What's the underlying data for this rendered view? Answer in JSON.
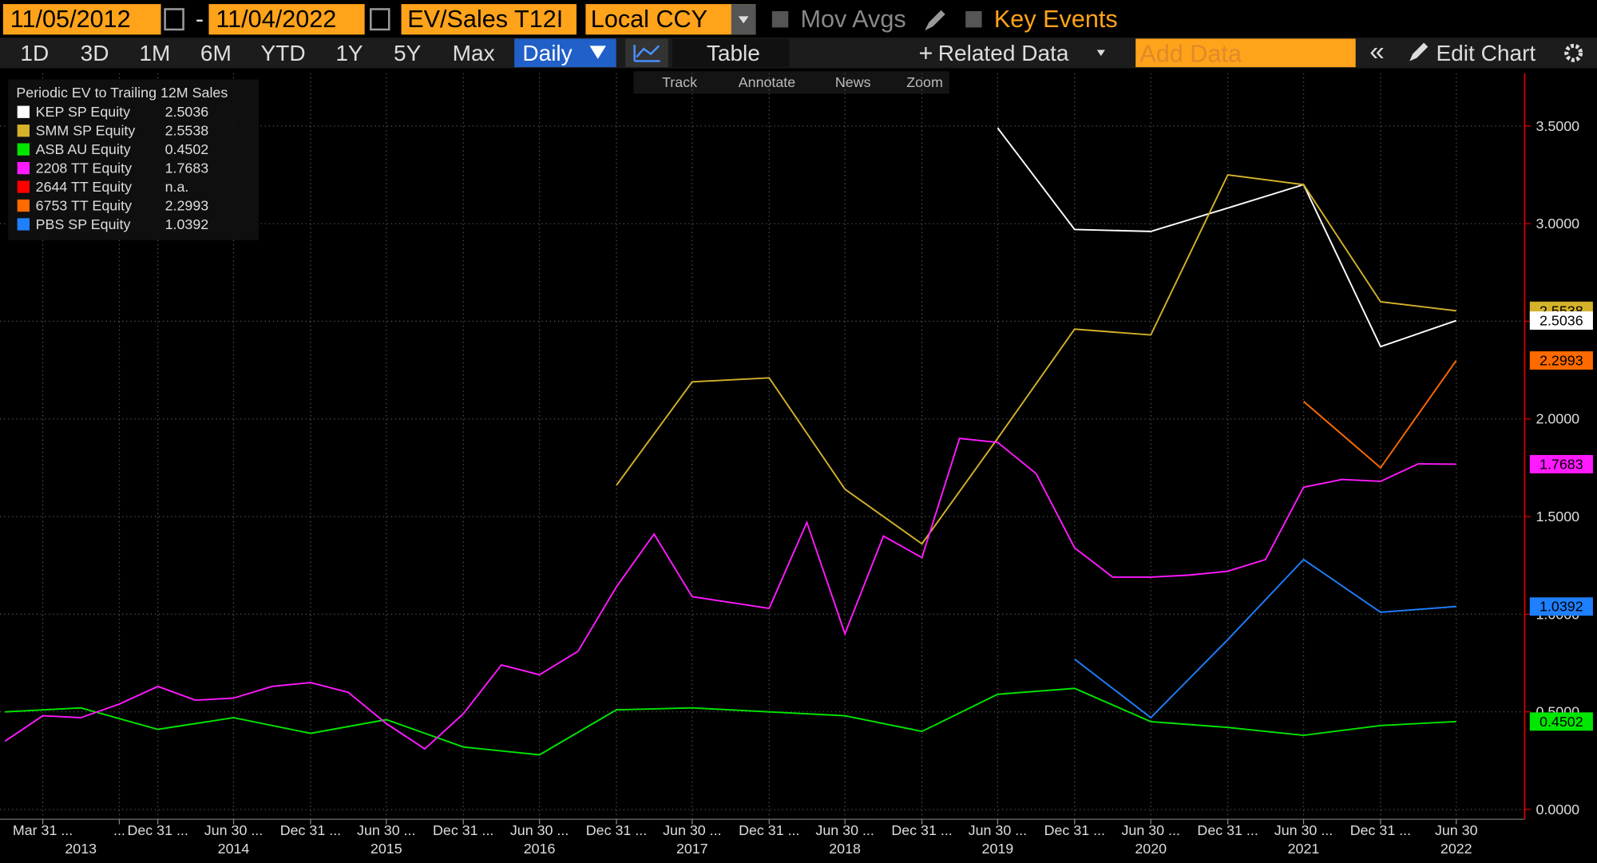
{
  "toolbar": {
    "start_date": "11/05/2012",
    "end_date": "11/04/2022",
    "field": "EV/Sales T12I",
    "currency": "Local CCY",
    "mov_avgs": "Mov Avgs",
    "key_events": "Key Events",
    "periods": [
      "1D",
      "3D",
      "1M",
      "6M",
      "YTD",
      "1Y",
      "5Y",
      "Max"
    ],
    "frequency": "Daily",
    "table": "Table",
    "related": "Related Data",
    "add_data": "Add Data",
    "edit_chart": "Edit Chart",
    "tools": [
      "Track",
      "Annotate",
      "News",
      "Zoom"
    ]
  },
  "chart_data": {
    "type": "line",
    "legend_title": "Periodic EV to Trailing 12M Sales",
    "legend": "top-left",
    "grid": true,
    "xlim": [
      "Dec 31 2012",
      "Nov 04 2022"
    ],
    "xticks": [
      {
        "value": "Mar 31 2013",
        "label": "Mar 31 ..."
      },
      {
        "value": "Sep 30 2013",
        "label": "..."
      },
      {
        "value": "Dec 31 2013",
        "label": "Dec 31 ..."
      },
      {
        "value": "Jun 30 2014",
        "label": "Jun 30 ..."
      },
      {
        "value": "Dec 31 2014",
        "label": "Dec 31 ..."
      },
      {
        "value": "Jun 30 2015",
        "label": "Jun 30 ..."
      },
      {
        "value": "Dec 31 2015",
        "label": "Dec 31 ..."
      },
      {
        "value": "Jun 30 2016",
        "label": "Jun 30 ..."
      },
      {
        "value": "Dec 31 2016",
        "label": "Dec 31 ..."
      },
      {
        "value": "Jun 30 2017",
        "label": "Jun 30 ..."
      },
      {
        "value": "Dec 31 2017",
        "label": "Dec 31 ..."
      },
      {
        "value": "Jun 30 2018",
        "label": "Jun 30 ..."
      },
      {
        "value": "Dec 31 2018",
        "label": "Dec 31 ..."
      },
      {
        "value": "Jun 30 2019",
        "label": "Jun 30 ..."
      },
      {
        "value": "Dec 31 2019",
        "label": "Dec 31 ..."
      },
      {
        "value": "Jun 30 2020",
        "label": "Jun 30 ..."
      },
      {
        "value": "Dec 31 2020",
        "label": "Dec 31 ..."
      },
      {
        "value": "Jun 30 2021",
        "label": "Jun 30 ..."
      },
      {
        "value": "Dec 31 2021",
        "label": "Dec 31 ..."
      },
      {
        "value": "Jun 30 2022",
        "label": "Jun 30"
      }
    ],
    "year_ticks": [
      {
        "value": "Jun 30 2013",
        "label": "2013"
      },
      {
        "value": "Jun 30 2014",
        "label": "2014"
      },
      {
        "value": "Jun 30 2015",
        "label": "2015"
      },
      {
        "value": "Jun 30 2016",
        "label": "2016"
      },
      {
        "value": "Jun 30 2017",
        "label": "2017"
      },
      {
        "value": "Jun 30 2018",
        "label": "2018"
      },
      {
        "value": "Jun 30 2019",
        "label": "2019"
      },
      {
        "value": "Jun 30 2020",
        "label": "2020"
      },
      {
        "value": "Jun 30 2021",
        "label": "2021"
      },
      {
        "value": "Jun 30 2022",
        "label": "2022"
      }
    ],
    "ylim": [
      -0.05,
      3.77
    ],
    "yticks": [
      {
        "value": 0,
        "label": "0.0000"
      },
      {
        "value": 0.5,
        "label": "0.5000"
      },
      {
        "value": 1,
        "label": "1.0000"
      },
      {
        "value": 1.5,
        "label": "1.5000"
      },
      {
        "value": 2,
        "label": "2.0000"
      },
      {
        "value": 2.5,
        "label": "2.5000"
      },
      {
        "value": 3,
        "label": "3.0000"
      },
      {
        "value": 3.5,
        "label": "3.5000"
      }
    ],
    "series": [
      {
        "name": "KEP SP Equity",
        "color": "#ffffff",
        "x": [
          "Jun 30 2019",
          "Dec 31 2019",
          "Jun 30 2020",
          "Dec 31 2020",
          "Jun 30 2021",
          "Dec 31 2021",
          "Jun 30 2022"
        ],
        "values": [
          3.49,
          2.97,
          2.96,
          3.08,
          3.2,
          2.37,
          2.5036
        ]
      },
      {
        "name": "SMM SP Equity",
        "color": "#d4b22a",
        "x": [
          "Dec 31 2016",
          "Jun 30 2017",
          "Dec 31 2017",
          "Jun 30 2018",
          "Dec 31 2018",
          "Jun 30 2019",
          "Dec 31 2019",
          "Jun 30 2020",
          "Dec 31 2020",
          "Jun 30 2021",
          "Dec 31 2021",
          "Jun 30 2022"
        ],
        "values": [
          1.66,
          2.19,
          2.21,
          1.64,
          1.36,
          1.9,
          2.46,
          2.43,
          3.25,
          3.2,
          2.6,
          2.5538
        ]
      },
      {
        "name": "ASB AU Equity",
        "color": "#00e600",
        "x": [
          "Dec 31 2012",
          "Jun 30 2013",
          "Dec 31 2013",
          "Jun 30 2014",
          "Dec 31 2014",
          "Jun 30 2015",
          "Dec 31 2015",
          "Jun 30 2016",
          "Dec 31 2016",
          "Jun 30 2017",
          "Dec 31 2017",
          "Jun 30 2018",
          "Dec 31 2018",
          "Jun 30 2019",
          "Dec 31 2019",
          "Jun 30 2020",
          "Dec 31 2020",
          "Jun 30 2021",
          "Dec 31 2021",
          "Jun 30 2022"
        ],
        "values": [
          0.5,
          0.52,
          0.41,
          0.47,
          0.39,
          0.46,
          0.32,
          0.28,
          0.51,
          0.52,
          0.5,
          0.48,
          0.4,
          0.59,
          0.62,
          0.45,
          0.42,
          0.38,
          0.43,
          0.4502
        ]
      },
      {
        "name": "2208 TT Equity",
        "color": "#ff1aff",
        "x": [
          "Dec 31 2012",
          "Mar 31 2013",
          "Jun 30 2013",
          "Sep 30 2013",
          "Dec 31 2013",
          "Mar 31 2014",
          "Jun 30 2014",
          "Sep 30 2014",
          "Dec 31 2014",
          "Mar 31 2015",
          "Jun 30 2015",
          "Sep 30 2015",
          "Dec 31 2015",
          "Mar 31 2016",
          "Jun 30 2016",
          "Sep 30 2016",
          "Dec 31 2016",
          "Mar 31 2017",
          "Jun 30 2017",
          "Sep 30 2017",
          "Dec 31 2017",
          "Mar 31 2018",
          "Jun 30 2018",
          "Sep 30 2018",
          "Dec 31 2018",
          "Mar 31 2019",
          "Jun 30 2019",
          "Sep 30 2019",
          "Dec 31 2019",
          "Mar 31 2020",
          "Jun 30 2020",
          "Sep 30 2020",
          "Dec 31 2020",
          "Mar 31 2021",
          "Jun 30 2021",
          "Sep 30 2021",
          "Dec 31 2021",
          "Mar 31 2022",
          "Jun 30 2022"
        ],
        "values": [
          0.35,
          0.48,
          0.47,
          0.54,
          0.63,
          0.56,
          0.57,
          0.63,
          0.65,
          0.6,
          0.44,
          0.31,
          0.49,
          0.74,
          0.69,
          0.81,
          1.14,
          1.41,
          1.09,
          1.06,
          1.03,
          1.47,
          0.9,
          1.4,
          1.29,
          1.9,
          1.88,
          1.72,
          1.34,
          1.19,
          1.19,
          1.2,
          1.22,
          1.28,
          1.65,
          1.69,
          1.68,
          1.77,
          1.7683
        ]
      },
      {
        "name": "2644 TT Equity",
        "color": "#ff0000",
        "x": [],
        "values": [],
        "legend_value": "n.a."
      },
      {
        "name": "6753 TT Equity",
        "color": "#ff6a00",
        "x": [
          "Jun 30 2021",
          "Dec 31 2021",
          "Jun 30 2022"
        ],
        "values": [
          2.09,
          1.75,
          2.2993
        ]
      },
      {
        "name": "PBS SP Equity",
        "color": "#1e7fff",
        "x": [
          "Dec 31 2019",
          "Jun 30 2020",
          "Dec 31 2020",
          "Jun 30 2021",
          "Dec 31 2021",
          "Jun 30 2022"
        ],
        "values": [
          0.77,
          0.47,
          0.87,
          1.28,
          1.01,
          1.0392
        ]
      }
    ]
  }
}
